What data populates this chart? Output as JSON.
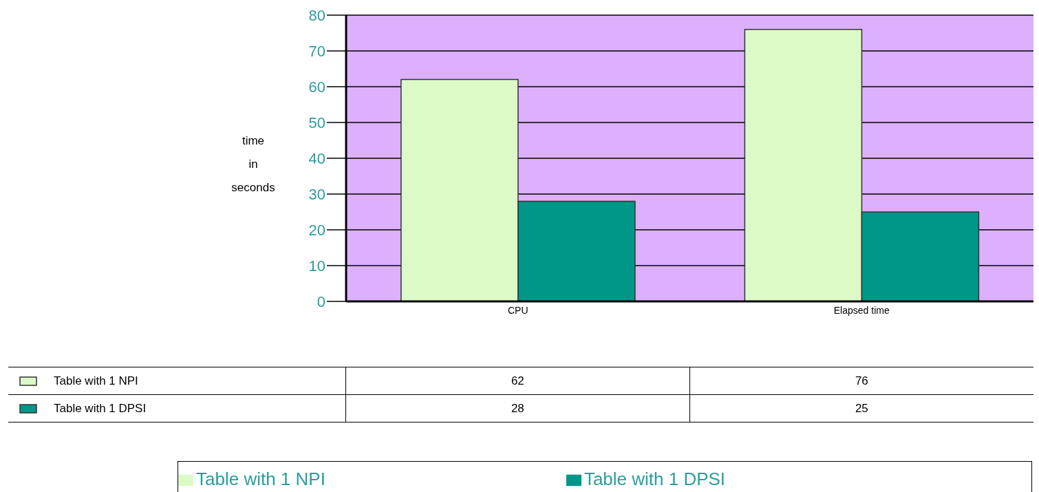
{
  "chart_data": {
    "type": "bar",
    "ylabel": "time in seconds",
    "categories": [
      "CPU",
      "Elapsed time"
    ],
    "series": [
      {
        "name": "Table with 1 NPI",
        "color": "#dcfac8",
        "values": [
          62,
          76
        ]
      },
      {
        "name": "Table with 1 DPSI",
        "color": "#009688",
        "values": [
          28,
          25
        ]
      }
    ],
    "ylim": [
      0,
      80
    ],
    "yticks": [
      0,
      10,
      20,
      30,
      40,
      50,
      60,
      70,
      80
    ],
    "grid": "y",
    "legend": "bottom",
    "data_labels": true
  }
}
